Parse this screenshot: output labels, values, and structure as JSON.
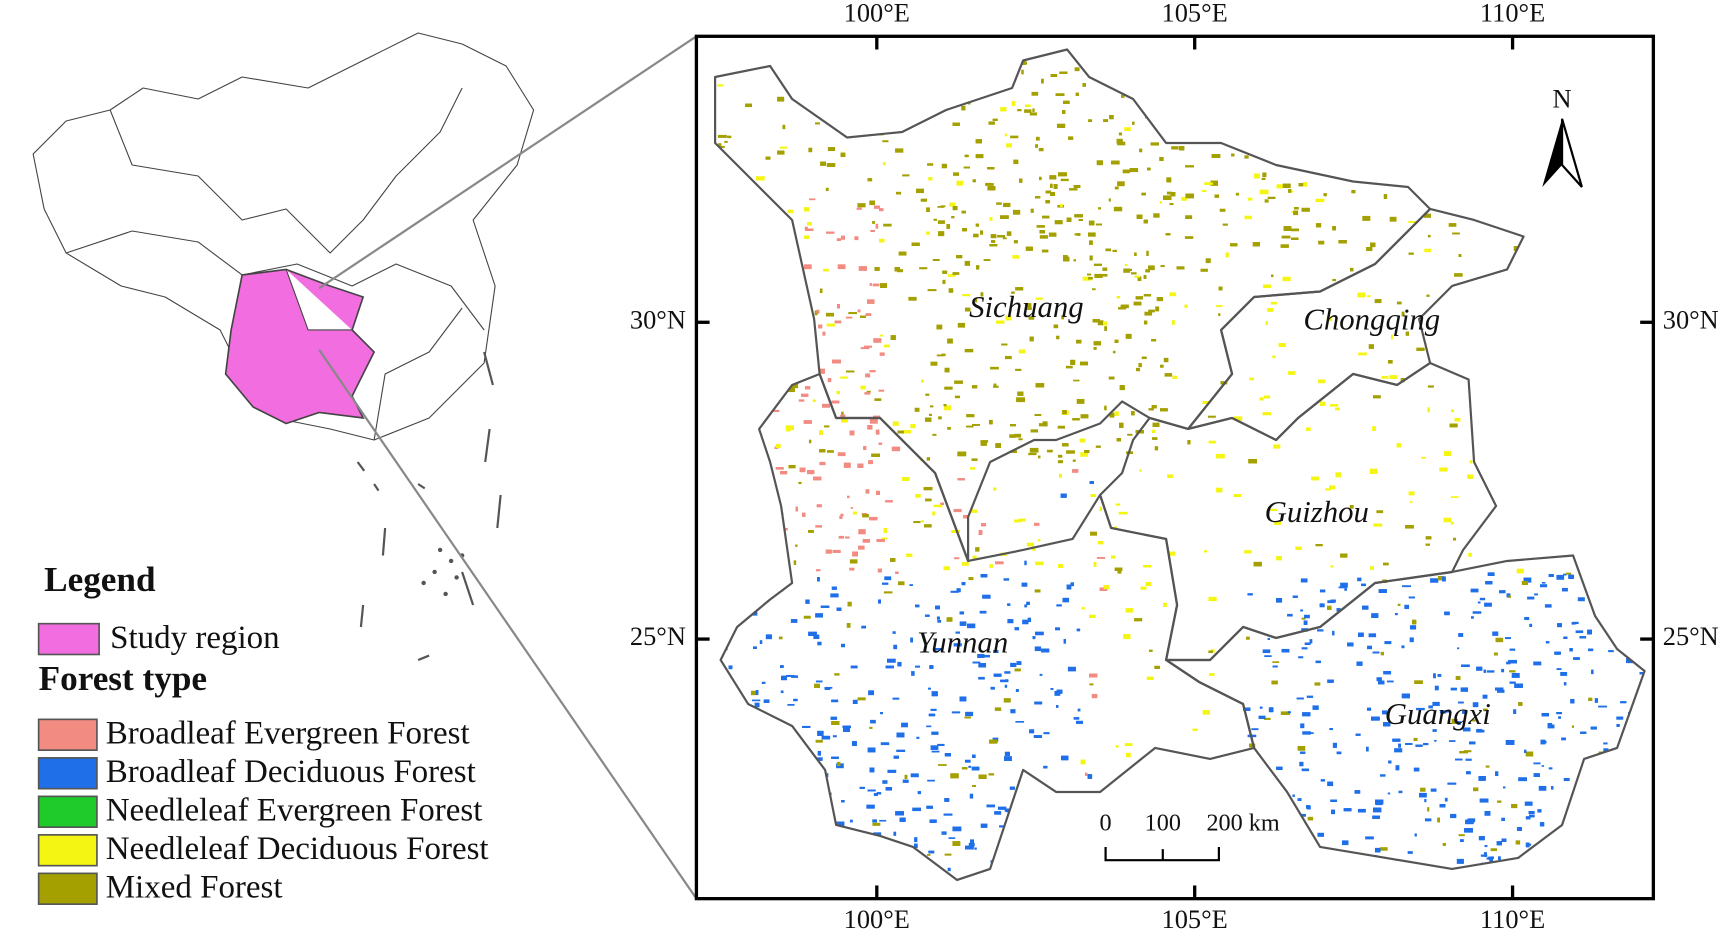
{
  "map": {
    "lon_ticks": [
      {
        "value": 100,
        "label": "100°E"
      },
      {
        "value": 105,
        "label": "105°E"
      },
      {
        "value": 110,
        "label": "110°E"
      }
    ],
    "lat_ticks": [
      {
        "value": 30,
        "label": "30°N"
      },
      {
        "value": 25,
        "label": "25°N"
      }
    ],
    "north": "N",
    "scale_bar": [
      "0",
      "100",
      "200 km"
    ],
    "provinces": [
      "Sichuang",
      "Chongqing",
      "Guizhou",
      "Yunnan",
      "Guangxi"
    ]
  },
  "legend": {
    "title": "Legend",
    "study_region": {
      "label": "Study region",
      "color": "#f26ee0"
    },
    "forest_type_title": "Forest type",
    "forest_types": [
      {
        "label": "Broadleaf Evergreen Forest",
        "color": "#f28b82"
      },
      {
        "label": "Broadleaf Deciduous Forest",
        "color": "#1f6fe8"
      },
      {
        "label": "Needleleaf Evergreen Forest",
        "color": "#1ecb2a"
      },
      {
        "label": "Needleleaf Deciduous Forest",
        "color": "#f5f514"
      },
      {
        "label": "Mixed Forest",
        "color": "#a3a000"
      }
    ]
  }
}
